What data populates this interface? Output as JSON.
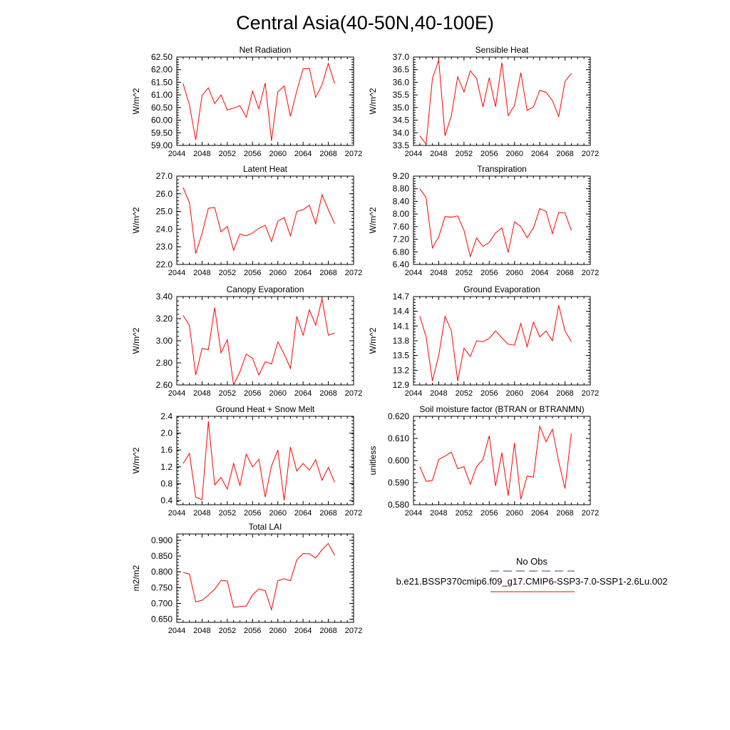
{
  "page": {
    "title": "Central Asia(40-50N,40-100E)"
  },
  "legend": {
    "entries": [
      {
        "label": "No Obs",
        "color": "#3a3a8c",
        "style": "dashed"
      },
      {
        "label": "b.e21.BSSP370cmip6.f09_g17.CMIP6-SSP3-7.0-SSP1-2.6Lu.002",
        "color": "#ff0000",
        "style": "solid"
      }
    ]
  },
  "colors": {
    "series": "#ff0000",
    "axis": "#000000"
  },
  "chart_data": [
    {
      "type": "line",
      "title": "Net Radiation",
      "ylabel": "W/m^2",
      "xlim": [
        2044,
        2072
      ],
      "ylim": [
        59.0,
        62.5
      ],
      "xticks": [
        "2044",
        "2048",
        "2052",
        "2056",
        "2060",
        "2064",
        "2068",
        "2072"
      ],
      "yticks": [
        "59.00",
        "59.50",
        "60.00",
        "60.50",
        "61.00",
        "61.50",
        "62.00",
        "62.50"
      ],
      "series": [
        {
          "x": [
            2045,
            2046,
            2047,
            2048,
            2049,
            2050,
            2051,
            2052,
            2053,
            2054,
            2055,
            2056,
            2057,
            2058,
            2059,
            2060,
            2061,
            2062,
            2063,
            2064,
            2065,
            2066,
            2067,
            2068,
            2069
          ],
          "values": [
            61.45,
            60.6,
            59.22,
            60.98,
            61.28,
            60.66,
            61.0,
            60.4,
            60.48,
            60.57,
            60.12,
            61.15,
            60.45,
            61.47,
            59.18,
            61.12,
            61.35,
            60.15,
            61.15,
            62.03,
            62.05,
            60.9,
            61.4,
            62.25,
            61.45
          ]
        }
      ]
    },
    {
      "type": "line",
      "title": "Sensible Heat",
      "ylabel": "W/m^2",
      "xlim": [
        2044,
        2072
      ],
      "ylim": [
        33.5,
        37.0
      ],
      "xticks": [
        "2044",
        "2048",
        "2052",
        "2056",
        "2060",
        "2064",
        "2068",
        "2072"
      ],
      "yticks": [
        "33.5",
        "34.0",
        "34.5",
        "35.0",
        "35.5",
        "36.0",
        "36.5",
        "37.0"
      ],
      "series": [
        {
          "x": [
            2045,
            2046,
            2047,
            2048,
            2049,
            2050,
            2051,
            2052,
            2053,
            2054,
            2055,
            2056,
            2057,
            2058,
            2059,
            2060,
            2061,
            2062,
            2063,
            2064,
            2065,
            2066,
            2067,
            2068,
            2069
          ],
          "values": [
            33.88,
            33.55,
            36.15,
            36.88,
            33.88,
            34.68,
            36.22,
            35.62,
            36.45,
            36.15,
            35.02,
            36.18,
            35.03,
            36.78,
            34.68,
            35.08,
            36.38,
            34.88,
            35.03,
            35.68,
            35.6,
            35.28,
            34.65,
            36.03,
            36.35
          ]
        }
      ]
    },
    {
      "type": "line",
      "title": "Latent Heat",
      "ylabel": "W/m^2",
      "xlim": [
        2044,
        2072
      ],
      "ylim": [
        22.0,
        27.0
      ],
      "xticks": [
        "2044",
        "2048",
        "2052",
        "2056",
        "2060",
        "2064",
        "2068",
        "2072"
      ],
      "yticks": [
        "22.0",
        "23.0",
        "24.0",
        "25.0",
        "26.0",
        "27.0"
      ],
      "series": [
        {
          "x": [
            2045,
            2046,
            2047,
            2048,
            2049,
            2050,
            2051,
            2052,
            2053,
            2054,
            2055,
            2056,
            2057,
            2058,
            2059,
            2060,
            2061,
            2062,
            2063,
            2064,
            2065,
            2066,
            2067,
            2068,
            2069
          ],
          "values": [
            26.35,
            25.5,
            22.62,
            23.75,
            25.18,
            25.22,
            23.85,
            24.15,
            22.8,
            23.72,
            23.62,
            23.78,
            24.05,
            24.22,
            23.3,
            24.45,
            24.65,
            23.62,
            25.0,
            25.1,
            25.35,
            24.3,
            25.95,
            25.1,
            24.3
          ]
        }
      ]
    },
    {
      "type": "line",
      "title": "Transpiration",
      "ylabel": "W/m^2",
      "xlim": [
        2044,
        2072
      ],
      "ylim": [
        6.4,
        9.2
      ],
      "xticks": [
        "2044",
        "2048",
        "2052",
        "2056",
        "2060",
        "2064",
        "2068",
        "2072"
      ],
      "yticks": [
        "6.40",
        "6.80",
        "7.20",
        "7.60",
        "8.00",
        "8.40",
        "8.80",
        "9.20"
      ],
      "series": [
        {
          "x": [
            2045,
            2046,
            2047,
            2048,
            2049,
            2050,
            2051,
            2052,
            2053,
            2054,
            2055,
            2056,
            2057,
            2058,
            2059,
            2060,
            2061,
            2062,
            2063,
            2064,
            2065,
            2066,
            2067,
            2068,
            2069
          ],
          "values": [
            8.8,
            8.52,
            6.92,
            7.28,
            7.92,
            7.9,
            7.94,
            7.48,
            6.65,
            7.24,
            6.97,
            7.1,
            7.4,
            7.56,
            6.78,
            7.75,
            7.6,
            7.25,
            7.56,
            8.17,
            8.08,
            7.38,
            8.05,
            8.03,
            7.48
          ]
        }
      ]
    },
    {
      "type": "line",
      "title": "Canopy Evaporation",
      "ylabel": "W/m^2",
      "xlim": [
        2044,
        2072
      ],
      "ylim": [
        2.6,
        3.4
      ],
      "xticks": [
        "2044",
        "2048",
        "2052",
        "2056",
        "2060",
        "2064",
        "2068",
        "2072"
      ],
      "yticks": [
        "2.60",
        "2.80",
        "3.00",
        "3.20",
        "3.40"
      ],
      "series": [
        {
          "x": [
            2045,
            2046,
            2047,
            2048,
            2049,
            2050,
            2051,
            2052,
            2053,
            2054,
            2055,
            2056,
            2057,
            2058,
            2059,
            2060,
            2061,
            2062,
            2063,
            2064,
            2065,
            2066,
            2067,
            2068,
            2069
          ],
          "values": [
            3.23,
            3.14,
            2.69,
            2.93,
            2.92,
            3.3,
            2.89,
            3.01,
            2.6,
            2.72,
            2.88,
            2.84,
            2.69,
            2.81,
            2.79,
            2.99,
            2.88,
            2.75,
            3.22,
            3.05,
            3.28,
            3.14,
            3.38,
            3.05,
            3.07
          ]
        }
      ]
    },
    {
      "type": "line",
      "title": "Ground Evaporation",
      "ylabel": "W/m^2",
      "xlim": [
        2044,
        2072
      ],
      "ylim": [
        12.9,
        14.7
      ],
      "xticks": [
        "2044",
        "2048",
        "2052",
        "2056",
        "2060",
        "2064",
        "2068",
        "2072"
      ],
      "yticks": [
        "12.9",
        "13.2",
        "13.5",
        "13.8",
        "14.1",
        "14.4",
        "14.7"
      ],
      "series": [
        {
          "x": [
            2045,
            2046,
            2047,
            2048,
            2049,
            2050,
            2051,
            2052,
            2053,
            2054,
            2055,
            2056,
            2057,
            2058,
            2059,
            2060,
            2061,
            2062,
            2063,
            2064,
            2065,
            2066,
            2067,
            2068,
            2069
          ],
          "values": [
            14.3,
            13.88,
            12.98,
            13.5,
            14.3,
            14.0,
            12.98,
            13.65,
            13.48,
            13.8,
            13.78,
            13.85,
            14.0,
            13.86,
            13.73,
            13.71,
            14.15,
            13.68,
            14.18,
            13.88,
            14.0,
            13.8,
            14.52,
            14.0,
            13.78
          ]
        }
      ]
    },
    {
      "type": "line",
      "title": "Ground Heat + Snow Melt",
      "ylabel": "W/m^2",
      "xlim": [
        2044,
        2072
      ],
      "ylim": [
        0.3,
        2.4
      ],
      "xticks": [
        "2044",
        "2048",
        "2052",
        "2056",
        "2060",
        "2064",
        "2068",
        "2072"
      ],
      "yticks": [
        "0.4",
        "0.8",
        "1.2",
        "1.6",
        "2.0",
        "2.4"
      ],
      "series": [
        {
          "x": [
            2045,
            2046,
            2047,
            2048,
            2049,
            2050,
            2051,
            2052,
            2053,
            2054,
            2055,
            2056,
            2057,
            2058,
            2059,
            2060,
            2061,
            2062,
            2063,
            2064,
            2065,
            2066,
            2067,
            2068,
            2069
          ],
          "values": [
            1.28,
            1.52,
            0.48,
            0.42,
            2.28,
            0.77,
            0.95,
            0.67,
            1.28,
            0.75,
            1.5,
            1.2,
            1.38,
            0.48,
            1.22,
            1.6,
            0.4,
            1.67,
            1.1,
            1.28,
            1.12,
            1.37,
            0.88,
            1.19,
            0.83
          ]
        }
      ]
    },
    {
      "type": "line",
      "title": "Soil moisture factor (BTRAN or BTRANMN)",
      "ylabel": "unitless",
      "xlim": [
        2044,
        2072
      ],
      "ylim": [
        0.58,
        0.62
      ],
      "xticks": [
        "2044",
        "2048",
        "2052",
        "2056",
        "2060",
        "2064",
        "2068",
        "2072"
      ],
      "yticks": [
        "0.580",
        "0.590",
        "0.600",
        "0.610",
        "0.620"
      ],
      "series": [
        {
          "x": [
            2045,
            2046,
            2047,
            2048,
            2049,
            2050,
            2051,
            2052,
            2053,
            2054,
            2055,
            2056,
            2057,
            2058,
            2059,
            2060,
            2061,
            2062,
            2063,
            2064,
            2065,
            2066,
            2067,
            2068,
            2069
          ],
          "values": [
            0.5972,
            0.5906,
            0.591,
            0.6005,
            0.602,
            0.6038,
            0.5963,
            0.5972,
            0.5893,
            0.5973,
            0.6005,
            0.6112,
            0.5885,
            0.6035,
            0.584,
            0.608,
            0.5825,
            0.593,
            0.5925,
            0.6155,
            0.6085,
            0.6142,
            0.5995,
            0.5873,
            0.6122
          ]
        }
      ]
    },
    {
      "type": "line",
      "title": "Total LAI",
      "ylabel": "m2/m2",
      "xlim": [
        2044,
        2072
      ],
      "ylim": [
        0.64,
        0.92
      ],
      "xticks": [
        "2044",
        "2048",
        "2052",
        "2056",
        "2060",
        "2064",
        "2068",
        "2072"
      ],
      "yticks": [
        "0.650",
        "0.700",
        "0.750",
        "0.800",
        "0.850",
        "0.900"
      ],
      "series": [
        {
          "x": [
            2045,
            2046,
            2047,
            2048,
            2049,
            2050,
            2051,
            2052,
            2053,
            2054,
            2055,
            2056,
            2057,
            2058,
            2059,
            2060,
            2061,
            2062,
            2063,
            2064,
            2065,
            2066,
            2067,
            2068,
            2069
          ],
          "values": [
            0.798,
            0.793,
            0.705,
            0.71,
            0.726,
            0.745,
            0.773,
            0.771,
            0.688,
            0.69,
            0.692,
            0.727,
            0.746,
            0.74,
            0.68,
            0.772,
            0.778,
            0.772,
            0.838,
            0.858,
            0.857,
            0.844,
            0.87,
            0.89,
            0.852
          ]
        }
      ]
    }
  ]
}
